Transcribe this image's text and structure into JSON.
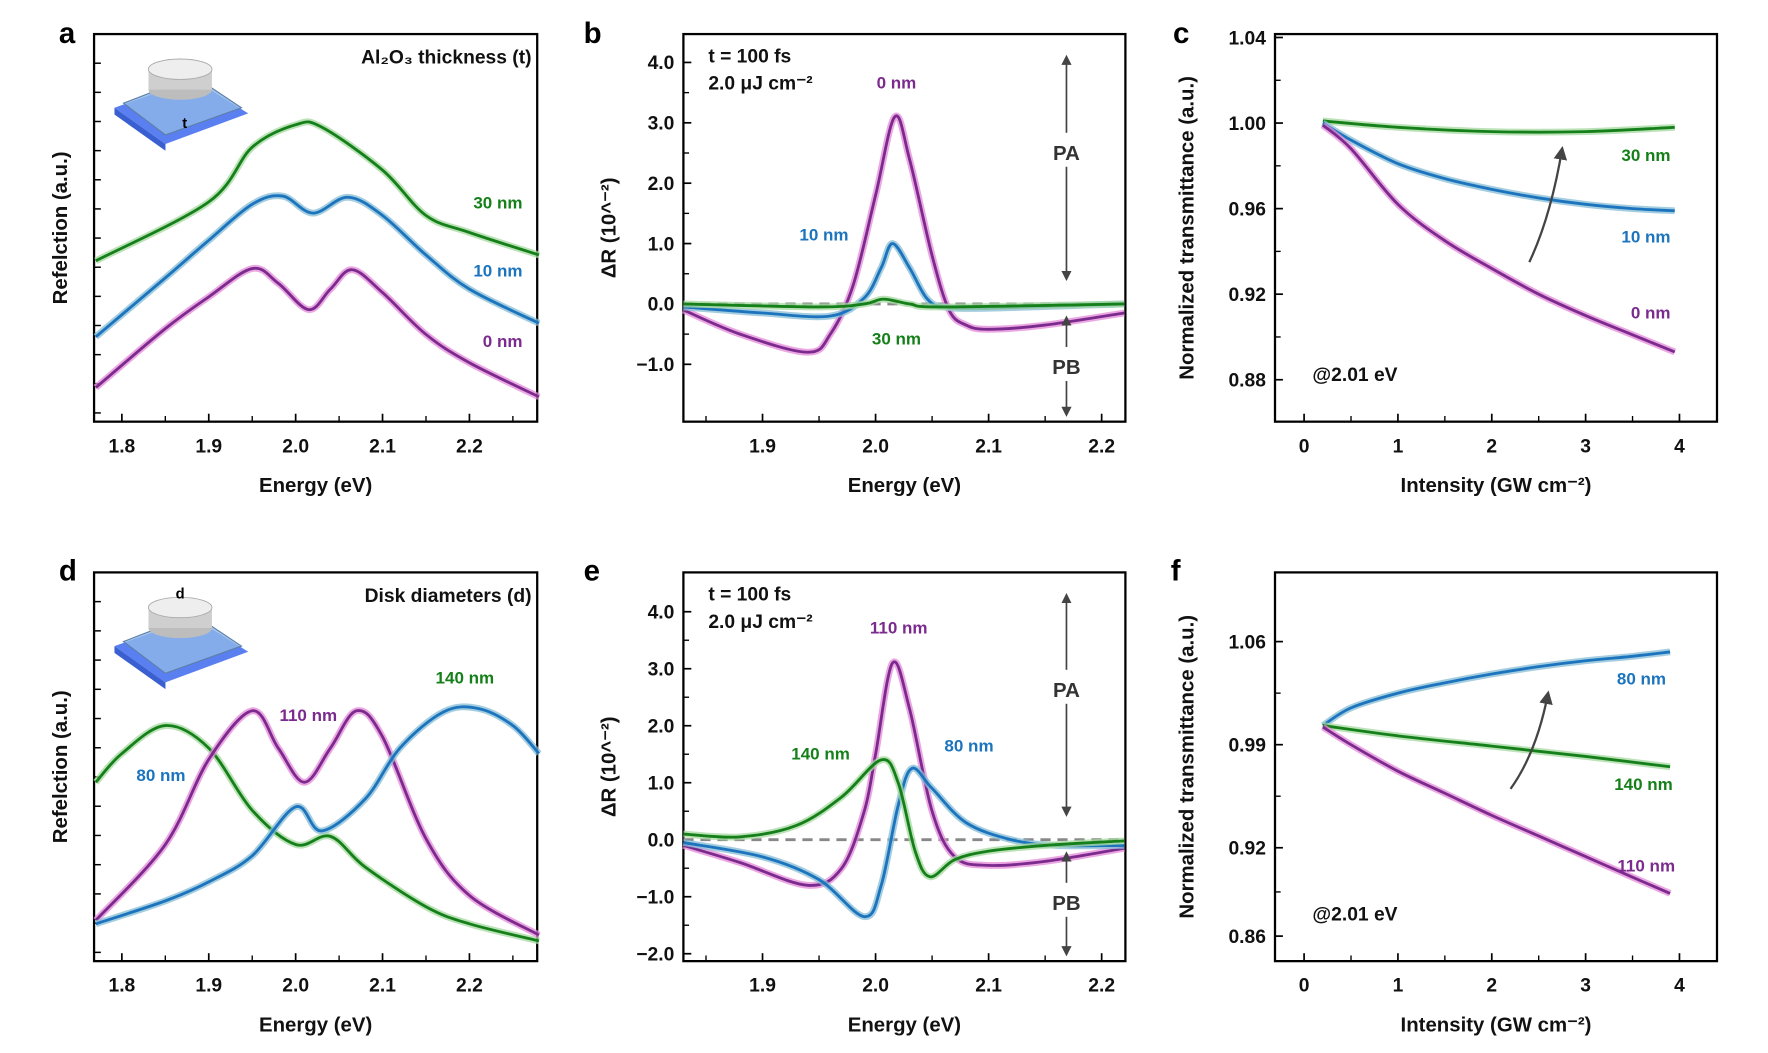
{
  "colors": {
    "purple": "#7b2a8e",
    "pink": "#e58ad8",
    "blue": "#1b74bd",
    "lightblue": "#86bcd6",
    "green": "#15801a",
    "lightgreen": "#a6d8a0",
    "arrow": "#444444"
  },
  "chart_data": [
    {
      "panel": "a",
      "type": "line",
      "xlabel": "Energy (eV)",
      "ylabel": "Refelction (a.u.)",
      "title": "Al₂O₃ thickness (t)",
      "xlim": [
        1.768,
        2.278
      ],
      "ylim": [
        0,
        1
      ],
      "xticks": [
        "1.8",
        "1.9",
        "2.0",
        "2.1",
        "2.2"
      ],
      "yticks": [],
      "inset_label": "t",
      "series": [
        {
          "name": "30 nm",
          "color": "green",
          "x": [
            1.77,
            1.9,
            1.95,
            2.0,
            2.03,
            2.1,
            2.15,
            2.2,
            2.28
          ],
          "y": [
            0.415,
            0.567,
            0.708,
            0.766,
            0.76,
            0.649,
            0.532,
            0.488,
            0.43
          ]
        },
        {
          "name": "10 nm",
          "color": "blue",
          "x": [
            1.77,
            1.85,
            1.9,
            1.95,
            1.985,
            2.02,
            2.06,
            2.1,
            2.15,
            2.2,
            2.28
          ],
          "y": [
            0.219,
            0.371,
            0.468,
            0.561,
            0.582,
            0.538,
            0.579,
            0.532,
            0.43,
            0.342,
            0.254
          ]
        },
        {
          "name": "0 nm",
          "color": "purple",
          "x": [
            1.77,
            1.85,
            1.9,
            1.95,
            1.98,
            2.015,
            2.04,
            2.065,
            2.1,
            2.15,
            2.2,
            2.28
          ],
          "y": [
            0.088,
            0.24,
            0.322,
            0.395,
            0.357,
            0.289,
            0.342,
            0.392,
            0.333,
            0.225,
            0.152,
            0.064
          ]
        }
      ]
    },
    {
      "panel": "b",
      "type": "line",
      "xlabel": "Energy (eV)",
      "ylabel": "ΔR (10^⁻²)",
      "notes": [
        "t = 100 fs",
        "2.0 μJ cm⁻²"
      ],
      "pa": "PA",
      "pb": "PB",
      "xlim": [
        1.83,
        2.221
      ],
      "ylim": [
        -1.95,
        4.47
      ],
      "xticks": [
        "1.9",
        "2.0",
        "2.1",
        "2.2"
      ],
      "yticks": [
        "4.0",
        "3.0",
        "2.0",
        "1.0",
        "0.0",
        "−1.0"
      ],
      "zero_line": true,
      "series": [
        {
          "name": "0 nm",
          "color": "purple",
          "x": [
            1.83,
            1.88,
            1.94,
            1.96,
            1.98,
            2.0,
            2.017,
            2.03,
            2.05,
            2.065,
            2.08,
            2.1,
            2.15,
            2.22
          ],
          "y": [
            -0.1,
            -0.5,
            -0.8,
            -0.5,
            0.3,
            1.8,
            3.1,
            2.4,
            0.8,
            -0.1,
            -0.35,
            -0.42,
            -0.35,
            -0.15
          ]
        },
        {
          "name": "10 nm",
          "color": "blue",
          "x": [
            1.83,
            1.9,
            1.96,
            1.99,
            2.005,
            2.015,
            2.03,
            2.045,
            2.06,
            2.1,
            2.22
          ],
          "y": [
            -0.05,
            -0.15,
            -0.2,
            0.1,
            0.6,
            1.0,
            0.6,
            0.1,
            -0.05,
            -0.07,
            0.0
          ]
        },
        {
          "name": "30 nm",
          "color": "green",
          "x": [
            1.83,
            1.95,
            1.99,
            2.007,
            2.03,
            2.06,
            2.22
          ],
          "y": [
            0.0,
            -0.05,
            0.0,
            0.08,
            0.0,
            -0.05,
            0.0
          ]
        }
      ]
    },
    {
      "panel": "c",
      "type": "line",
      "xlabel": "Intensity (GW cm⁻²)",
      "ylabel": "Normalized transmittance (a.u.)",
      "note": "@2.01 eV",
      "xlim": [
        -0.31,
        4.4
      ],
      "ylim": [
        0.8604,
        1.0416
      ],
      "xticks": [
        "0",
        "1",
        "2",
        "3",
        "4"
      ],
      "yticks": [
        "1.04",
        "1.00",
        "0.96",
        "0.92",
        "0.88"
      ],
      "arrow": {
        "from": [
          2.4,
          0.935
        ],
        "to": [
          2.75,
          0.988
        ]
      },
      "series": [
        {
          "name": "30 nm",
          "color": "green",
          "x": [
            0.2,
            1,
            2,
            3,
            3.95
          ],
          "y": [
            1.001,
            0.998,
            0.996,
            0.996,
            0.998
          ]
        },
        {
          "name": "10 nm",
          "color": "blue",
          "x": [
            0.2,
            0.5,
            1,
            1.5,
            2,
            2.5,
            3,
            3.5,
            3.95
          ],
          "y": [
            1.0,
            0.992,
            0.981,
            0.974,
            0.969,
            0.965,
            0.962,
            0.96,
            0.959
          ]
        },
        {
          "name": "0 nm",
          "color": "purple",
          "x": [
            0.2,
            0.5,
            1,
            1.5,
            2,
            2.5,
            3,
            3.5,
            3.95
          ],
          "y": [
            0.999,
            0.988,
            0.962,
            0.945,
            0.932,
            0.92,
            0.91,
            0.901,
            0.893
          ]
        }
      ]
    },
    {
      "panel": "d",
      "type": "line",
      "xlabel": "Energy (eV)",
      "ylabel": "Refelction (a.u.)",
      "title": "Disk diameters (d)",
      "xlim": [
        1.768,
        2.278
      ],
      "ylim": [
        0,
        1
      ],
      "xticks": [
        "1.8",
        "1.9",
        "2.0",
        "2.1",
        "2.2"
      ],
      "yticks": [],
      "inset_label": "d",
      "series": [
        {
          "name": "140 nm",
          "color": "green",
          "x": [
            1.77,
            1.8,
            1.85,
            1.9,
            1.95,
            2.0,
            2.04,
            2.08,
            2.15,
            2.2,
            2.28
          ],
          "y": [
            0.46,
            0.534,
            0.606,
            0.548,
            0.388,
            0.3,
            0.321,
            0.242,
            0.14,
            0.096,
            0.052
          ]
        },
        {
          "name": "110 nm",
          "color": "purple",
          "x": [
            1.77,
            1.85,
            1.9,
            1.95,
            1.98,
            2.01,
            2.04,
            2.07,
            2.1,
            2.15,
            2.2,
            2.28
          ],
          "y": [
            0.105,
            0.3,
            0.519,
            0.644,
            0.548,
            0.46,
            0.548,
            0.644,
            0.577,
            0.315,
            0.169,
            0.067
          ]
        },
        {
          "name": "80 nm",
          "color": "blue",
          "x": [
            1.77,
            1.85,
            1.9,
            1.95,
            2.0,
            2.03,
            2.08,
            2.12,
            2.17,
            2.21,
            2.25,
            2.28
          ],
          "y": [
            0.096,
            0.155,
            0.204,
            0.271,
            0.397,
            0.335,
            0.417,
            0.548,
            0.641,
            0.65,
            0.606,
            0.534
          ]
        }
      ]
    },
    {
      "panel": "e",
      "type": "line",
      "xlabel": "Energy (eV)",
      "ylabel": "ΔR (10^⁻²)",
      "notes": [
        "t = 100 fs",
        "2.0 μJ cm⁻²"
      ],
      "pa": "PA",
      "pb": "PB",
      "xlim": [
        1.83,
        2.221
      ],
      "ylim": [
        -2.13,
        4.69
      ],
      "xticks": [
        "1.9",
        "2.0",
        "2.1",
        "2.2"
      ],
      "yticks": [
        "4.0",
        "3.0",
        "2.0",
        "1.0",
        "0.0",
        "−1.0",
        "−2.0"
      ],
      "zero_line": true,
      "series": [
        {
          "name": "110 nm",
          "color": "purple",
          "x": [
            1.83,
            1.88,
            1.94,
            1.97,
            1.99,
            2.0,
            2.015,
            2.03,
            2.05,
            2.07,
            2.1,
            2.15,
            2.22
          ],
          "y": [
            -0.1,
            -0.4,
            -0.8,
            -0.5,
            0.5,
            1.5,
            3.1,
            2.3,
            0.5,
            -0.3,
            -0.45,
            -0.38,
            -0.15
          ]
        },
        {
          "name": "80 nm",
          "color": "blue",
          "x": [
            1.83,
            1.9,
            1.95,
            1.99,
            2.005,
            2.02,
            2.032,
            2.05,
            2.08,
            2.12,
            2.16,
            2.22
          ],
          "y": [
            -0.05,
            -0.3,
            -0.7,
            -1.35,
            -0.8,
            0.6,
            1.25,
            0.9,
            0.3,
            0.0,
            -0.1,
            -0.1
          ]
        },
        {
          "name": "140 nm",
          "color": "green",
          "x": [
            1.83,
            1.88,
            1.93,
            1.97,
            2.005,
            2.02,
            2.035,
            2.048,
            2.07,
            2.1,
            2.15,
            2.22
          ],
          "y": [
            0.1,
            0.05,
            0.25,
            0.75,
            1.4,
            1.0,
            -0.2,
            -0.65,
            -0.35,
            -0.2,
            -0.1,
            -0.02
          ]
        }
      ]
    },
    {
      "panel": "f",
      "type": "line",
      "xlabel": "Intensity (GW cm⁻²)",
      "ylabel": "Normalized transmittance (a.u.)",
      "note": "@2.01 eV",
      "xlim": [
        -0.31,
        4.4
      ],
      "ylim": [
        0.843,
        1.107
      ],
      "xticks": [
        "0",
        "1",
        "2",
        "3",
        "4"
      ],
      "yticks": [
        "1.06",
        "0.99",
        "0.92",
        "0.86"
      ],
      "arrow": {
        "from": [
          2.2,
          0.96
        ],
        "to": [
          2.6,
          1.025
        ]
      },
      "series": [
        {
          "name": "80 nm",
          "color": "blue",
          "x": [
            0.2,
            0.5,
            1,
            1.5,
            2,
            2.5,
            3,
            3.5,
            3.9
          ],
          "y": [
            1.003,
            1.015,
            1.025,
            1.032,
            1.038,
            1.043,
            1.047,
            1.05,
            1.053
          ]
        },
        {
          "name": "140 nm",
          "color": "green",
          "x": [
            0.2,
            1,
            2,
            3,
            3.9
          ],
          "y": [
            1.003,
            0.996,
            0.989,
            0.982,
            0.975
          ]
        },
        {
          "name": "110 nm",
          "color": "purple",
          "x": [
            0.2,
            0.5,
            1,
            1.5,
            2,
            2.5,
            3,
            3.5,
            3.9
          ],
          "y": [
            1.002,
            0.99,
            0.972,
            0.957,
            0.942,
            0.928,
            0.914,
            0.9,
            0.889
          ]
        }
      ]
    }
  ]
}
